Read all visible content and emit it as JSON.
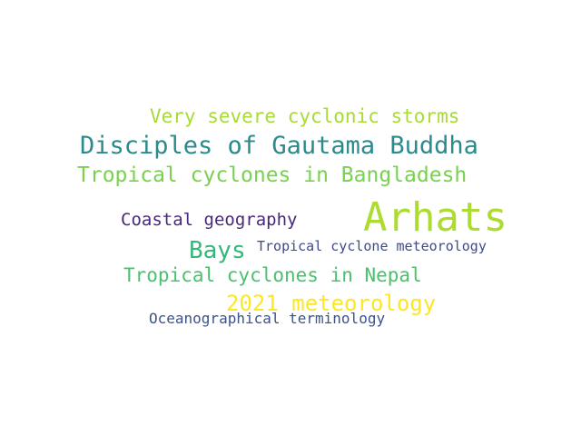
{
  "words": [
    {
      "text": "Arhats",
      "color": "#addc30"
    },
    {
      "text": "Disciples of Gautama Buddha",
      "color": "#2a8a8c"
    },
    {
      "text": "Very severe cyclonic storms",
      "color": "#a8db34"
    },
    {
      "text": "Tropical cyclones in Bangladesh",
      "color": "#7ad151"
    },
    {
      "text": "Coastal geography",
      "color": "#482979"
    },
    {
      "text": "Bays",
      "color": "#35b779"
    },
    {
      "text": "Tropical cyclone meteorology",
      "color": "#3e4a89"
    },
    {
      "text": "Tropical cyclones in Nepal",
      "color": "#4ac16d"
    },
    {
      "text": "2021 meteorology",
      "color": "#fde725"
    },
    {
      "text": "Oceanographical terminology",
      "color": "#3b528b"
    }
  ]
}
